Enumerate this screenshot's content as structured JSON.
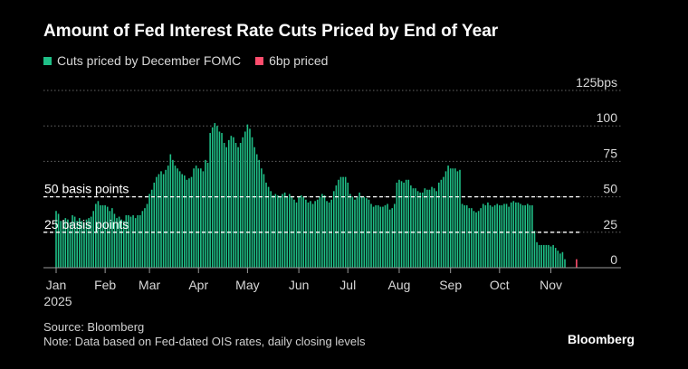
{
  "title": "Amount of Fed Interest Rate Cuts Priced by End of Year",
  "legend": [
    {
      "label": "Cuts priced by December FOMC",
      "color": "#1fbf87"
    },
    {
      "label": "6bp priced",
      "color": "#ff4d6d"
    }
  ],
  "footer": {
    "source": "Source: Bloomberg",
    "note": "Note: Data based on Fed-dated OIS rates, daily closing levels"
  },
  "brand": "Bloomberg",
  "chart_data": {
    "type": "bar",
    "title": "Amount of Fed Interest Rate Cuts Priced by End of Year",
    "xlabel": "",
    "ylabel": "bps",
    "ylim": [
      0,
      125
    ],
    "grid": true,
    "yticks": [
      {
        "value": 125,
        "label": "125bps"
      },
      {
        "value": 100,
        "label": "100"
      },
      {
        "value": 75,
        "label": "75"
      },
      {
        "value": 50,
        "label": "50"
      },
      {
        "value": 25,
        "label": "25"
      },
      {
        "value": 0,
        "label": "0"
      }
    ],
    "xticks": [
      {
        "index": 0,
        "label": "Jan"
      },
      {
        "index": 21,
        "label": "Feb"
      },
      {
        "index": 40,
        "label": "Mar"
      },
      {
        "index": 61,
        "label": "Apr"
      },
      {
        "index": 82,
        "label": "May"
      },
      {
        "index": 104,
        "label": "Jun"
      },
      {
        "index": 125,
        "label": "Jul"
      },
      {
        "index": 147,
        "label": "Aug"
      },
      {
        "index": 169,
        "label": "Sep"
      },
      {
        "index": 190,
        "label": "Oct"
      },
      {
        "index": 212,
        "label": "Nov"
      }
    ],
    "year_label": "2025",
    "reference_lines": [
      {
        "value": 50,
        "label": "50 basis points"
      },
      {
        "value": 25,
        "label": "25 basis points"
      }
    ],
    "series": [
      {
        "name": "Cuts priced by December FOMC",
        "color": "#1fbf87",
        "values": [
          40,
          38,
          33,
          33,
          35,
          34,
          32,
          37,
          36,
          33,
          35,
          33,
          32,
          34,
          35,
          36,
          40,
          45,
          47,
          44,
          44,
          44,
          43,
          40,
          42,
          38,
          35,
          36,
          34,
          33,
          37,
          37,
          36,
          37,
          35,
          37,
          37,
          40,
          42,
          45,
          52,
          55,
          60,
          64,
          66,
          68,
          66,
          69,
          72,
          80,
          76,
          72,
          70,
          68,
          66,
          65,
          62,
          63,
          64,
          70,
          72,
          70,
          70,
          68,
          76,
          74,
          95,
          99,
          102,
          100,
          96,
          95,
          88,
          85,
          90,
          93,
          92,
          88,
          85,
          88,
          92,
          96,
          101,
          98,
          92,
          85,
          80,
          76,
          70,
          66,
          60,
          57,
          54,
          51,
          52,
          51,
          50,
          52,
          53,
          50,
          52,
          50,
          48,
          46,
          50,
          51,
          50,
          48,
          46,
          47,
          45,
          47,
          48,
          50,
          52,
          51,
          47,
          46,
          48,
          54,
          58,
          62,
          64,
          64,
          64,
          60,
          52,
          50,
          48,
          50,
          53,
          50,
          50,
          49,
          48,
          45,
          43,
          44,
          44,
          43,
          43,
          44,
          45,
          41,
          42,
          45,
          60,
          62,
          61,
          60,
          62,
          62,
          58,
          56,
          56,
          54,
          53,
          53,
          56,
          55,
          55,
          57,
          56,
          54,
          60,
          62,
          64,
          68,
          72,
          70,
          70,
          70,
          68,
          69,
          45,
          44,
          44,
          42,
          42,
          40,
          39,
          40,
          42,
          45,
          44,
          46,
          44,
          43,
          44,
          45,
          44,
          44,
          45,
          45,
          43,
          46,
          47,
          46,
          46,
          45,
          44,
          44,
          45,
          44,
          44,
          26,
          18,
          16,
          16,
          16,
          16,
          16,
          15,
          16,
          14,
          12,
          10,
          11,
          6
        ]
      },
      {
        "name": "6bp priced",
        "color": "#ff4d6d",
        "values": [
          {
            "index": 223,
            "value": 6
          }
        ]
      }
    ]
  }
}
